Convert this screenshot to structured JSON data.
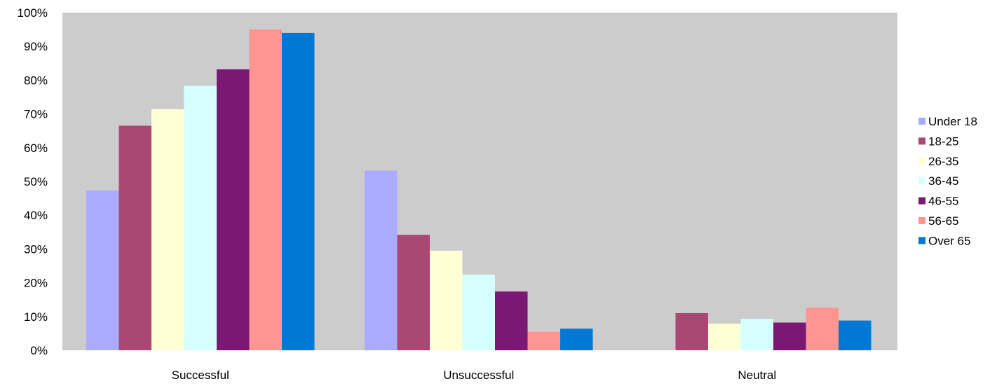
{
  "chart_data": {
    "type": "bar",
    "categories": [
      "Successful",
      "Unsuccessful",
      "Neutral"
    ],
    "series": [
      {
        "name": "Under 18",
        "color": "#aaaaff",
        "values": [
          47.3,
          53.2,
          0
        ]
      },
      {
        "name": "18-25",
        "color": "#a94872",
        "values": [
          66.5,
          34.2,
          11.0
        ]
      },
      {
        "name": "26-35",
        "color": "#ffffd6",
        "values": [
          71.4,
          29.5,
          7.9
        ]
      },
      {
        "name": "36-45",
        "color": "#d6ffff",
        "values": [
          78.3,
          22.4,
          9.3
        ]
      },
      {
        "name": "46-55",
        "color": "#7b1874",
        "values": [
          83.2,
          17.4,
          8.2
        ]
      },
      {
        "name": "56-65",
        "color": "#ff9590",
        "values": [
          95.0,
          5.4,
          12.6
        ]
      },
      {
        "name": "Over 65",
        "color": "#0078d4",
        "values": [
          94.0,
          6.4,
          8.8
        ]
      }
    ],
    "ylim": [
      0,
      100
    ],
    "yticks": [
      "0%",
      "10%",
      "20%",
      "30%",
      "40%",
      "50%",
      "60%",
      "70%",
      "80%",
      "90%",
      "100%"
    ],
    "grid": false,
    "plot_background": "#cccccc",
    "legend_position": "right",
    "title": "",
    "xlabel": "",
    "ylabel": ""
  }
}
